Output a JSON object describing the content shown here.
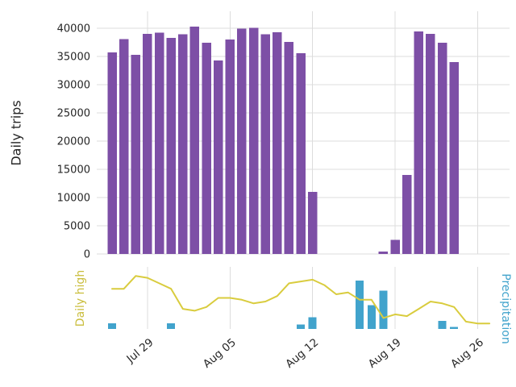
{
  "labels": {
    "daily_trips": "Daily trips",
    "daily_high": "Daily high",
    "precipitation": "Precipitation"
  },
  "colors": {
    "trips_bar": "#7D4FA6",
    "daily_high_line": "#D9CC3E",
    "daily_high_label": "#C9BD3B",
    "precipitation": "#41A3CC",
    "grid": "#DCDCDC",
    "tick_text": "#262626",
    "background": "#FFFFFF"
  },
  "chart_data": [
    {
      "type": "bar",
      "title": "",
      "xlabel": "",
      "ylabel": "Daily trips",
      "ylim": [
        0,
        43000
      ],
      "yticks": [
        0,
        5000,
        10000,
        15000,
        20000,
        25000,
        30000,
        35000,
        40000
      ],
      "xtick_labels": [
        "Jul 29",
        "Aug 05",
        "Aug 12",
        "Aug 19",
        "Aug 26"
      ],
      "grid": true,
      "legend_position": "none",
      "categories": [
        "Jul 26",
        "Jul 27",
        "Jul 28",
        "Jul 29",
        "Jul 30",
        "Jul 31",
        "Aug 01",
        "Aug 02",
        "Aug 03",
        "Aug 04",
        "Aug 05",
        "Aug 06",
        "Aug 07",
        "Aug 08",
        "Aug 09",
        "Aug 10",
        "Aug 11",
        "Aug 12",
        "Aug 13",
        "Aug 14",
        "Aug 15",
        "Aug 16",
        "Aug 17",
        "Aug 18",
        "Aug 19",
        "Aug 20",
        "Aug 21",
        "Aug 22",
        "Aug 23",
        "Aug 24"
      ],
      "values": [
        35700,
        38100,
        35300,
        39000,
        39200,
        38300,
        38900,
        40300,
        37400,
        34300,
        38000,
        39900,
        40100,
        38900,
        39300,
        37600,
        35600,
        11000,
        0,
        0,
        0,
        0,
        0,
        400,
        2500,
        14000,
        39400,
        39000,
        37400,
        34000
      ]
    },
    {
      "type": "line",
      "title": "",
      "xlabel": "",
      "ylabel_left": "Daily high",
      "ylabel_right": "Precipitation",
      "xtick_labels": [
        "Jul 29",
        "Aug 05",
        "Aug 12",
        "Aug 19",
        "Aug 26"
      ],
      "left_ylim": [
        66,
        100
      ],
      "right_ylim": [
        0,
        1.7
      ],
      "grid": true,
      "series": [
        {
          "name": "Daily high",
          "type": "line",
          "axis": "left",
          "x": [
            "Jul 26",
            "Jul 27",
            "Jul 28",
            "Jul 29",
            "Jul 30",
            "Jul 31",
            "Aug 01",
            "Aug 02",
            "Aug 03",
            "Aug 04",
            "Aug 05",
            "Aug 06",
            "Aug 07",
            "Aug 08",
            "Aug 09",
            "Aug 10",
            "Aug 11",
            "Aug 12",
            "Aug 13",
            "Aug 14",
            "Aug 15",
            "Aug 16",
            "Aug 17",
            "Aug 18",
            "Aug 19",
            "Aug 20",
            "Aug 21",
            "Aug 22",
            "Aug 23",
            "Aug 24",
            "Aug 25",
            "Aug 26",
            "Aug 27"
          ],
          "values": [
            88,
            88,
            95,
            94,
            91,
            88,
            77,
            76,
            78,
            83,
            83,
            82,
            80,
            81,
            84,
            91,
            92,
            93,
            90,
            85,
            86,
            82,
            82,
            72,
            74,
            73,
            77,
            81,
            80,
            78,
            70,
            69,
            69
          ]
        },
        {
          "name": "Precipitation",
          "type": "bar",
          "axis": "right",
          "x": [
            "Jul 26",
            "Jul 31",
            "Aug 11",
            "Aug 12",
            "Aug 16",
            "Aug 17",
            "Aug 18",
            "Aug 23",
            "Aug 24"
          ],
          "values": [
            0.15,
            0.15,
            0.12,
            0.32,
            1.32,
            0.65,
            1.05,
            0.22,
            0.06
          ]
        }
      ]
    }
  ]
}
